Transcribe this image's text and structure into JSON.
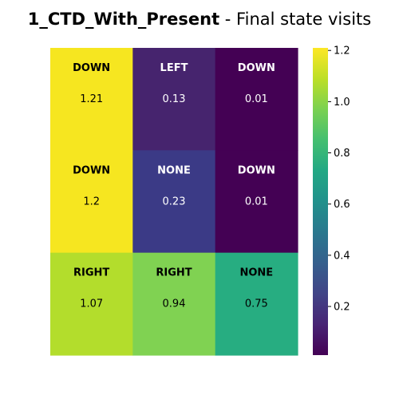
{
  "chart_data": {
    "type": "heatmap",
    "title_bold": "1_CTD_With_Present",
    "title_rest": " - Final state visits",
    "xlabel": "",
    "ylabel": "",
    "colormap": "viridis",
    "colorbar": {
      "min": 0.01,
      "max": 1.21,
      "ticks": [
        0.2,
        0.4,
        0.6,
        0.8,
        1.0,
        1.2
      ],
      "tick_labels": [
        "0.2",
        "0.4",
        "0.6",
        "0.8",
        "1.0",
        "1.2"
      ]
    },
    "cells": [
      [
        {
          "action": "DOWN",
          "value": 1.21,
          "color": "#f6e620"
        },
        {
          "action": "LEFT",
          "value": 0.13,
          "color": "#46246e"
        },
        {
          "action": "DOWN",
          "value": 0.01,
          "color": "#440154"
        }
      ],
      [
        {
          "action": "DOWN",
          "value": 1.2,
          "color": "#f6e620"
        },
        {
          "action": "NONE",
          "value": 0.23,
          "color": "#3b3a86"
        },
        {
          "action": "DOWN",
          "value": 0.01,
          "color": "#440154"
        }
      ],
      [
        {
          "action": "RIGHT",
          "value": 1.07,
          "color": "#b3dd2c"
        },
        {
          "action": "RIGHT",
          "value": 0.94,
          "color": "#80d252"
        },
        {
          "action": "NONE",
          "value": 0.75,
          "color": "#27ad81"
        }
      ]
    ]
  }
}
